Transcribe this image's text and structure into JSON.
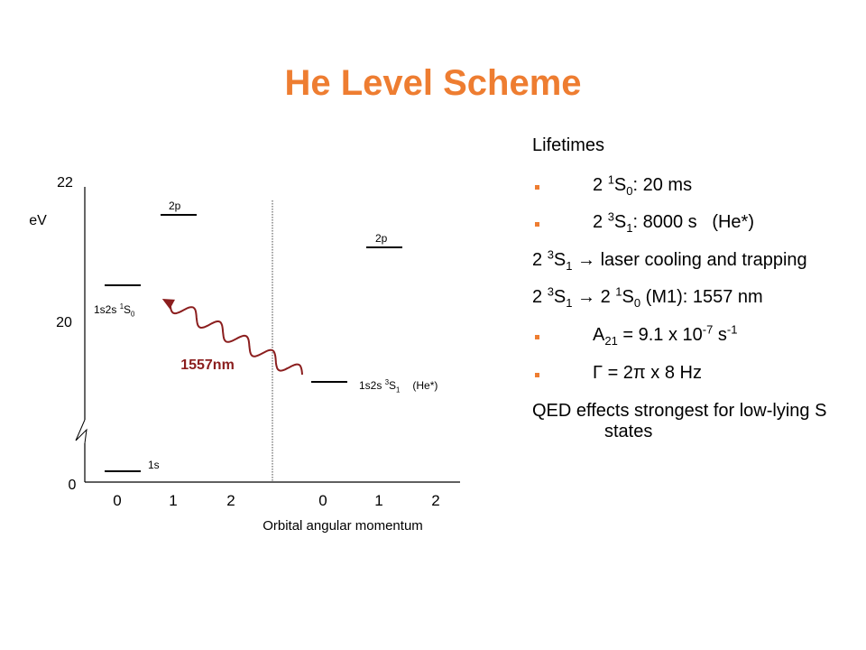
{
  "slide": {
    "title": "He Level Scheme"
  },
  "diagram": {
    "y_ticks": [
      "22",
      "20",
      "0"
    ],
    "unit": "eV",
    "x_ticks": [
      "0",
      "1",
      "2",
      "0",
      "1",
      "2"
    ],
    "x_label": "Orbital angular momentum",
    "transition_label": "1557nm",
    "levels": {
      "left_1s": "1s",
      "left_2p": "2p",
      "left_singlet": {
        "prefix": "1s2s ",
        "sup": "1",
        "mid": "S",
        "sub": "0"
      },
      "right_2p": "2p",
      "right_triplet": {
        "prefix": "1s2s ",
        "sup": "3",
        "mid": "S",
        "sub": "1",
        "suffix": "(He*)"
      }
    }
  },
  "notes": {
    "heading": "Lifetimes",
    "b1": {
      "pre": "2 ",
      "sup": "1",
      "mid": "S",
      "sub": "0",
      "post": ": 20 ms"
    },
    "b2": {
      "pre": "2 ",
      "sup": "3",
      "mid": "S",
      "sub": "1",
      "post": ": 8000 s   (He*)"
    },
    "l3": {
      "pre": "2 ",
      "sup": "3",
      "mid": "S",
      "sub": "1",
      "post": " → laser cooling and trapping"
    },
    "l4": {
      "pre": "2 ",
      "sup1": "3",
      "mid1": "S",
      "sub1": "1",
      "arrow": " → 2 ",
      "sup2": "1",
      "mid2": "S",
      "sub2": "0",
      "post": " (M1): 1557 nm"
    },
    "b5": {
      "pre": "A",
      "sub": "21",
      "mid": " = 9.1 x 10",
      "sup1": "-7",
      "mid2": " s",
      "sup2": "-1"
    },
    "b6": "Γ = 2π x 8 Hz",
    "l7": "QED effects strongest for low-lying S states"
  }
}
